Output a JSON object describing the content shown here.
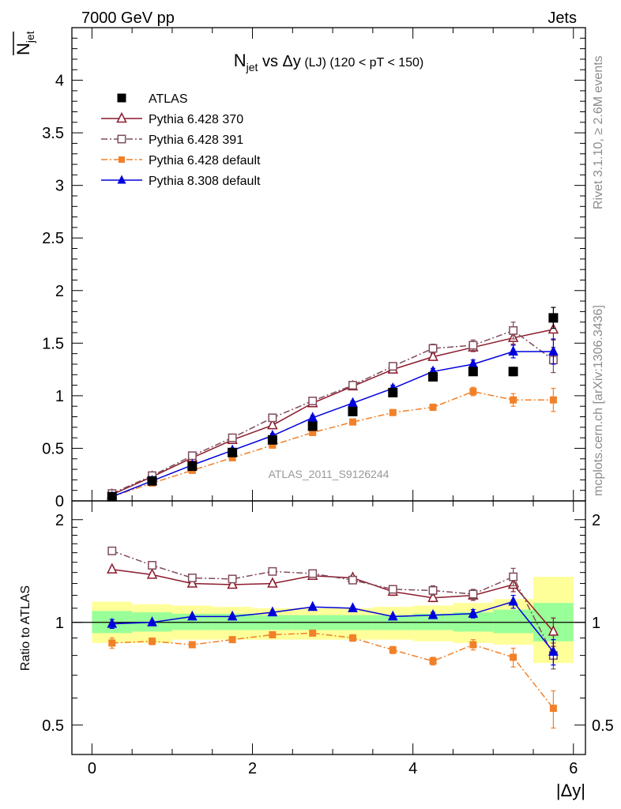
{
  "header": {
    "left": "7000 GeV pp",
    "right": "Jets"
  },
  "side_text": {
    "rivet": "Rivet 3.1.10, ≥ 2.6M events",
    "mcplots": "mcplots.cern.ch [arXiv:1306.3436]"
  },
  "chart_data": [
    {
      "type": "line",
      "title_parts": [
        "N",
        "jet",
        " vs ",
        "Δy",
        " (LJ)",
        " (120 < pT < 150)"
      ],
      "ylabel_parts": [
        "N",
        "jet"
      ],
      "watermark": "ATLAS_2011_S9126244",
      "xlim": [
        -0.25,
        6.15
      ],
      "ylim": [
        0,
        4.5
      ],
      "yticks": [
        "0",
        "0.5",
        "1",
        "1.5",
        "2",
        "2.5",
        "3",
        "3.5",
        "4"
      ],
      "x": [
        0.25,
        0.75,
        1.25,
        1.75,
        2.25,
        2.75,
        3.25,
        3.75,
        4.25,
        4.75,
        5.25,
        5.75
      ],
      "legend_position": "top-left",
      "series": [
        {
          "name": "ATLAS",
          "color": "#000000",
          "marker": "square",
          "line": "none",
          "values": [
            0.04,
            0.19,
            0.33,
            0.46,
            0.58,
            0.71,
            0.85,
            1.03,
            1.18,
            1.23,
            1.23,
            1.74
          ],
          "errors": [
            0.01,
            0.01,
            0.01,
            0.01,
            0.01,
            0.01,
            0.01,
            0.02,
            0.02,
            0.03,
            0.04,
            0.1
          ]
        },
        {
          "name": "Pythia 6.428 370",
          "color": "#8b1a2b",
          "marker": "triangle-open",
          "line": "solid",
          "values": [
            0.06,
            0.23,
            0.41,
            0.58,
            0.72,
            0.93,
            1.09,
            1.25,
            1.37,
            1.46,
            1.55,
            1.63
          ],
          "errors": [
            0.01,
            0.01,
            0.01,
            0.01,
            0.02,
            0.02,
            0.02,
            0.03,
            0.03,
            0.04,
            0.06,
            0.1
          ]
        },
        {
          "name": "Pythia 6.428 391",
          "color": "#7f4b5a",
          "marker": "square-open",
          "line": "dashdot",
          "values": [
            0.07,
            0.24,
            0.43,
            0.6,
            0.79,
            0.95,
            1.1,
            1.28,
            1.45,
            1.48,
            1.62,
            1.34
          ],
          "errors": [
            0.01,
            0.01,
            0.01,
            0.02,
            0.02,
            0.02,
            0.03,
            0.03,
            0.04,
            0.05,
            0.08,
            0.12
          ]
        },
        {
          "name": "Pythia 6.428 default",
          "color": "#f28028",
          "marker": "square",
          "line": "dashdot",
          "values": [
            0.04,
            0.17,
            0.29,
            0.41,
            0.53,
            0.65,
            0.75,
            0.84,
            0.89,
            1.04,
            0.96,
            0.96
          ],
          "errors": [
            0.01,
            0.01,
            0.01,
            0.01,
            0.01,
            0.02,
            0.02,
            0.02,
            0.03,
            0.04,
            0.06,
            0.11
          ]
        },
        {
          "name": "Pythia 8.308 default",
          "color": "#0000dd",
          "marker": "triangle",
          "line": "solid",
          "values": [
            0.04,
            0.19,
            0.34,
            0.48,
            0.62,
            0.79,
            0.93,
            1.07,
            1.23,
            1.3,
            1.42,
            1.42
          ],
          "errors": [
            0.01,
            0.01,
            0.01,
            0.01,
            0.02,
            0.02,
            0.02,
            0.03,
            0.03,
            0.04,
            0.06,
            0.12
          ]
        }
      ]
    },
    {
      "type": "line",
      "ylabel": "Ratio to ATLAS",
      "xlabel": "|Δy|",
      "xlim": [
        -0.25,
        6.15
      ],
      "ylim": [
        0.41,
        2.27
      ],
      "ylog": true,
      "yticks": [
        "0.5",
        "1",
        "2"
      ],
      "xticks": [
        "0",
        "2",
        "4",
        "6"
      ],
      "x": [
        0.25,
        0.75,
        1.25,
        1.75,
        2.25,
        2.75,
        3.25,
        3.75,
        4.25,
        4.75,
        5.25,
        5.75
      ],
      "uncertainty_bands": {
        "edges": [
          0,
          0.5,
          1,
          1.5,
          2,
          2.5,
          3,
          3.5,
          4,
          4.5,
          5,
          5.5,
          6
        ],
        "outer_color": "#ffff99",
        "inner_color": "#99ff99",
        "outer": [
          [
            0.87,
            1.15
          ],
          [
            0.87,
            1.13
          ],
          [
            0.89,
            1.12
          ],
          [
            0.89,
            1.11
          ],
          [
            0.89,
            1.1
          ],
          [
            0.89,
            1.1
          ],
          [
            0.89,
            1.1
          ],
          [
            0.89,
            1.11
          ],
          [
            0.88,
            1.12
          ],
          [
            0.87,
            1.14
          ],
          [
            0.86,
            1.17
          ],
          [
            0.76,
            1.36
          ]
        ],
        "inner": [
          [
            0.93,
            1.08
          ],
          [
            0.94,
            1.07
          ],
          [
            0.95,
            1.06
          ],
          [
            0.95,
            1.06
          ],
          [
            0.95,
            1.05
          ],
          [
            0.95,
            1.05
          ],
          [
            0.95,
            1.05
          ],
          [
            0.95,
            1.05
          ],
          [
            0.95,
            1.06
          ],
          [
            0.94,
            1.07
          ],
          [
            0.93,
            1.09
          ],
          [
            0.88,
            1.14
          ]
        ]
      },
      "series": [
        {
          "name": "Pythia 6.428 370",
          "color": "#8b1a2b",
          "marker": "triangle-open",
          "line": "solid",
          "values": [
            1.43,
            1.38,
            1.3,
            1.29,
            1.3,
            1.37,
            1.35,
            1.23,
            1.18,
            1.2,
            1.29,
            0.94
          ],
          "errors": [
            0.02,
            0.02,
            0.02,
            0.02,
            0.02,
            0.02,
            0.02,
            0.03,
            0.03,
            0.04,
            0.06,
            0.09
          ]
        },
        {
          "name": "Pythia 6.428 391",
          "color": "#7f4b5a",
          "marker": "square-open",
          "line": "dashdot",
          "values": [
            1.62,
            1.47,
            1.35,
            1.34,
            1.41,
            1.39,
            1.33,
            1.25,
            1.24,
            1.21,
            1.36,
            0.8
          ],
          "errors": [
            0.02,
            0.02,
            0.02,
            0.02,
            0.02,
            0.02,
            0.03,
            0.03,
            0.04,
            0.04,
            0.08,
            0.07
          ]
        },
        {
          "name": "Pythia 6.428 default",
          "color": "#f28028",
          "marker": "square",
          "line": "dashdot",
          "values": [
            0.87,
            0.88,
            0.86,
            0.89,
            0.92,
            0.93,
            0.9,
            0.83,
            0.77,
            0.86,
            0.79,
            0.56
          ],
          "errors": [
            0.03,
            0.02,
            0.01,
            0.01,
            0.01,
            0.01,
            0.02,
            0.02,
            0.02,
            0.03,
            0.05,
            0.07
          ]
        },
        {
          "name": "Pythia 8.308 default",
          "color": "#0000dd",
          "marker": "triangle",
          "line": "solid",
          "values": [
            0.99,
            1.0,
            1.04,
            1.04,
            1.07,
            1.11,
            1.1,
            1.04,
            1.05,
            1.06,
            1.15,
            0.82
          ],
          "errors": [
            0.03,
            0.01,
            0.01,
            0.01,
            0.01,
            0.01,
            0.01,
            0.01,
            0.02,
            0.03,
            0.05,
            0.07
          ]
        }
      ]
    }
  ]
}
